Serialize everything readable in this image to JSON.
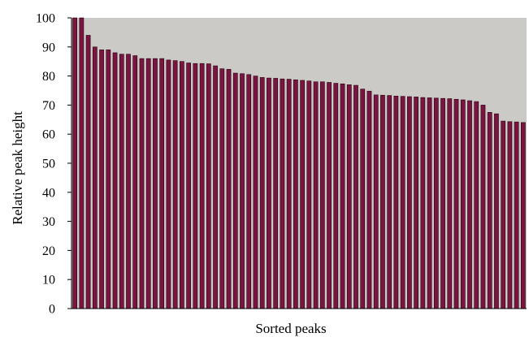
{
  "chart_data": {
    "type": "bar",
    "title": "",
    "xlabel": "Sorted peaks",
    "ylabel": "Relative peak height",
    "ylim": [
      0,
      100
    ],
    "yticks": [
      0,
      10,
      20,
      30,
      40,
      50,
      60,
      70,
      80,
      90,
      100
    ],
    "grid": false,
    "legend": "none",
    "colors": {
      "bar": "#7a1440",
      "bar_edge": "#2a0010",
      "plot_background": "#cccac6"
    },
    "values": [
      100,
      100,
      94,
      90,
      89,
      89,
      88,
      87.5,
      87.5,
      87,
      86,
      86,
      86,
      86,
      85.5,
      85.3,
      85,
      84.5,
      84.3,
      84.3,
      84.2,
      83.5,
      82.5,
      82.3,
      81,
      80.8,
      80.5,
      80,
      79.5,
      79.3,
      79.2,
      79,
      78.9,
      78.7,
      78.5,
      78.3,
      78,
      78,
      77.8,
      77.5,
      77.3,
      77,
      76.8,
      75.5,
      74.8,
      73.5,
      73.4,
      73.3,
      73.1,
      73,
      72.9,
      72.8,
      72.6,
      72.5,
      72.4,
      72.3,
      72.2,
      72,
      71.8,
      71.5,
      71.2,
      70,
      67.5,
      67,
      64.5,
      64.3,
      64.2,
      64
    ]
  }
}
